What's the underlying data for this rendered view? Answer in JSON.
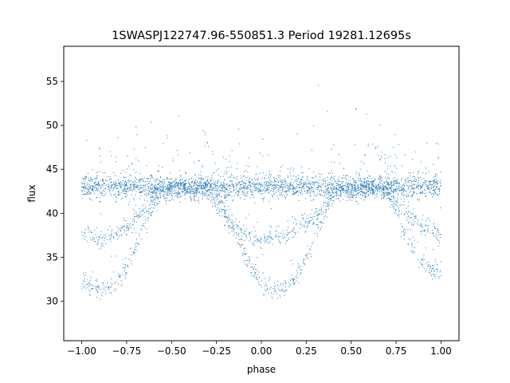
{
  "chart_data": {
    "type": "scatter",
    "title": "1SWASPJ122747.96-550851.3 Period 19281.12695s",
    "xlabel": "phase",
    "ylabel": "flux",
    "xlim": [
      -1.1,
      1.1
    ],
    "ylim": [
      25.5,
      59.0
    ],
    "grid": false,
    "marker_color": "#1f77b4",
    "x_ticks": [
      {
        "value": -1.0,
        "label": "−1.00"
      },
      {
        "value": -0.75,
        "label": "−0.75"
      },
      {
        "value": -0.5,
        "label": "−0.50"
      },
      {
        "value": -0.25,
        "label": "−0.25"
      },
      {
        "value": 0.0,
        "label": "0.00"
      },
      {
        "value": 0.25,
        "label": "0.25"
      },
      {
        "value": 0.5,
        "label": "0.50"
      },
      {
        "value": 0.75,
        "label": "0.75"
      },
      {
        "value": 1.0,
        "label": "1.00"
      }
    ],
    "y_ticks": [
      {
        "value": 30,
        "label": "30"
      },
      {
        "value": 35,
        "label": "35"
      },
      {
        "value": 40,
        "label": "40"
      },
      {
        "value": 45,
        "label": "45"
      },
      {
        "value": 50,
        "label": "50"
      },
      {
        "value": 55,
        "label": "55"
      }
    ],
    "series": [
      {
        "x": [
          -1.0,
          -0.9,
          -0.8,
          -0.7,
          -0.6,
          -0.5,
          -0.4,
          -0.3,
          -0.2,
          -0.1,
          0.0,
          0.1,
          0.2,
          0.3,
          0.4,
          0.5,
          0.6,
          0.7,
          0.8,
          0.9,
          1.0
        ],
        "y": [
          43,
          43,
          43,
          43,
          43,
          42.8,
          42.8,
          43,
          43,
          43,
          43,
          43,
          43,
          43,
          43,
          42.8,
          42.8,
          43,
          43,
          43,
          43
        ]
      },
      {
        "x": [
          -1.0,
          -0.95,
          -0.9,
          -0.85,
          -0.8,
          -0.75,
          -0.7,
          -0.65,
          -0.6,
          -0.55,
          -0.5,
          -0.45,
          -0.4,
          -0.35,
          -0.3,
          -0.25,
          -0.2,
          -0.15,
          -0.1,
          -0.05,
          0.0,
          0.05,
          0.1,
          0.15,
          0.2,
          0.25,
          0.3,
          0.35,
          0.4,
          0.45,
          0.5,
          0.55,
          0.6,
          0.65,
          0.7,
          0.75,
          0.8,
          0.85,
          0.9,
          0.95,
          1.0
        ],
        "y": [
          37.5,
          37.2,
          37.0,
          37.2,
          37.8,
          38.5,
          39.5,
          40.7,
          42.0,
          43.0,
          43.0,
          43.0,
          43.0,
          43.0,
          42.5,
          41.0,
          39.5,
          38.5,
          37.8,
          37.3,
          37.0,
          37.2,
          37.3,
          37.6,
          38.2,
          38.8,
          39.6,
          40.8,
          42.0,
          43.0,
          43.0,
          43.0,
          43.0,
          43.0,
          42.0,
          41.0,
          40.0,
          39.2,
          38.5,
          38.0,
          37.5
        ]
      },
      {
        "x": [
          -1.0,
          -0.95,
          -0.9,
          -0.85,
          -0.8,
          -0.75,
          -0.7,
          -0.65,
          -0.6,
          -0.55,
          -0.5,
          -0.45,
          -0.4,
          -0.35,
          -0.3,
          -0.25,
          -0.2,
          -0.15,
          -0.1,
          -0.05,
          0.0,
          0.05,
          0.1,
          0.15,
          0.2,
          0.25,
          0.3,
          0.35,
          0.4,
          0.45,
          0.5,
          0.55,
          0.6,
          0.65,
          0.7,
          0.75,
          0.8,
          0.85,
          0.9,
          0.95,
          1.0
        ],
        "y": [
          32.5,
          31.8,
          31.3,
          31.5,
          32.3,
          33.8,
          36.0,
          38.5,
          41.0,
          43.0,
          43.0,
          43.0,
          43.0,
          43.0,
          43.0,
          42.5,
          40.5,
          38.0,
          35.5,
          33.5,
          32.0,
          31.3,
          31.2,
          31.8,
          33.0,
          35.0,
          37.5,
          40.0,
          42.0,
          43.0,
          43.0,
          43.0,
          43.0,
          43.0,
          42.5,
          40.5,
          38.0,
          36.0,
          34.5,
          33.5,
          32.8
        ]
      }
    ]
  }
}
